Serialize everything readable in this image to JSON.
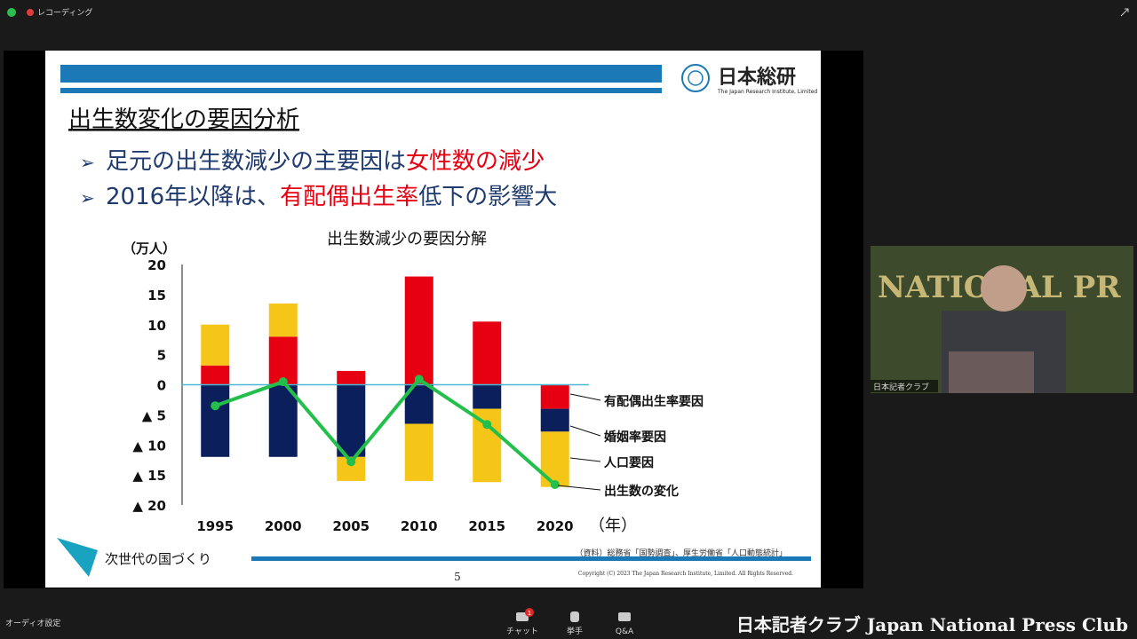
{
  "top_bar": {
    "recording": "レコーディング"
  },
  "slide": {
    "logo": {
      "name": "日本総研",
      "subtitle": "The Japan Research Institute, Limited"
    },
    "title": "出生数変化の要因分析",
    "bullets": [
      [
        {
          "text": "足元の出生数減少の主要因は"
        },
        {
          "text": "女性数の減少",
          "color": "#e60012"
        }
      ],
      [
        {
          "text": "2016年以降は、"
        },
        {
          "text": "有配偶出生率",
          "color": "#e60012"
        },
        {
          "text": "低下の影響大"
        }
      ]
    ],
    "footer": {
      "tagline": "次世代の国づくり",
      "source": "（資料）総務省「国勢調査」、厚生労働省「人口動態統計」",
      "page": "5",
      "copyright": "Copyright (C) 2023 The Japan Research Institute, Limited. All Rights Reserved."
    }
  },
  "chart_data": {
    "type": "stacked_bar_line",
    "title": "出生数減少の要因分解",
    "y_label": "（万人）",
    "x_label": "（年）",
    "categories": [
      "1995",
      "2000",
      "2005",
      "2010",
      "2015",
      "2020"
    ],
    "ylim": [
      -20,
      20
    ],
    "yticks": [
      {
        "value": -20,
        "label": "▲ 20"
      },
      {
        "value": -15,
        "label": "▲ 15"
      },
      {
        "value": -10,
        "label": "▲ 10"
      },
      {
        "value": -5,
        "label": "▲ 5"
      },
      0,
      5,
      10,
      15,
      20
    ],
    "grid": false,
    "series": [
      {
        "name": "有配偶出生率要因",
        "type": "bar",
        "color": "#e60012",
        "values": [
          3.2,
          8.0,
          2.3,
          18.0,
          10.5,
          -4.0
        ]
      },
      {
        "name": "婚姻率要因",
        "type": "bar",
        "color": "#0a1f5c",
        "values": [
          -12.0,
          -12.0,
          -12.0,
          -6.5,
          -4.0,
          -3.8
        ]
      },
      {
        "name": "人口要因",
        "type": "bar",
        "color": "#f5c518",
        "values": [
          6.8,
          5.5,
          -4.0,
          -9.5,
          -12.2,
          -9.2
        ]
      },
      {
        "name": "出生数の変化",
        "type": "line",
        "color": "#22c04b",
        "values": [
          -3.5,
          0.5,
          -12.8,
          0.9,
          -6.6,
          -16.6
        ]
      }
    ]
  },
  "video": {
    "wall_text": "NATIONAL PR",
    "participant": "日本記者クラブ"
  },
  "bottom_bar": {
    "audio": "オーディオ設定",
    "chat": "チャット",
    "chat_badge": "1",
    "raise_hand": "挙手",
    "qa": "Q&A",
    "watermark": "日本記者クラブ Japan National Press Club"
  }
}
